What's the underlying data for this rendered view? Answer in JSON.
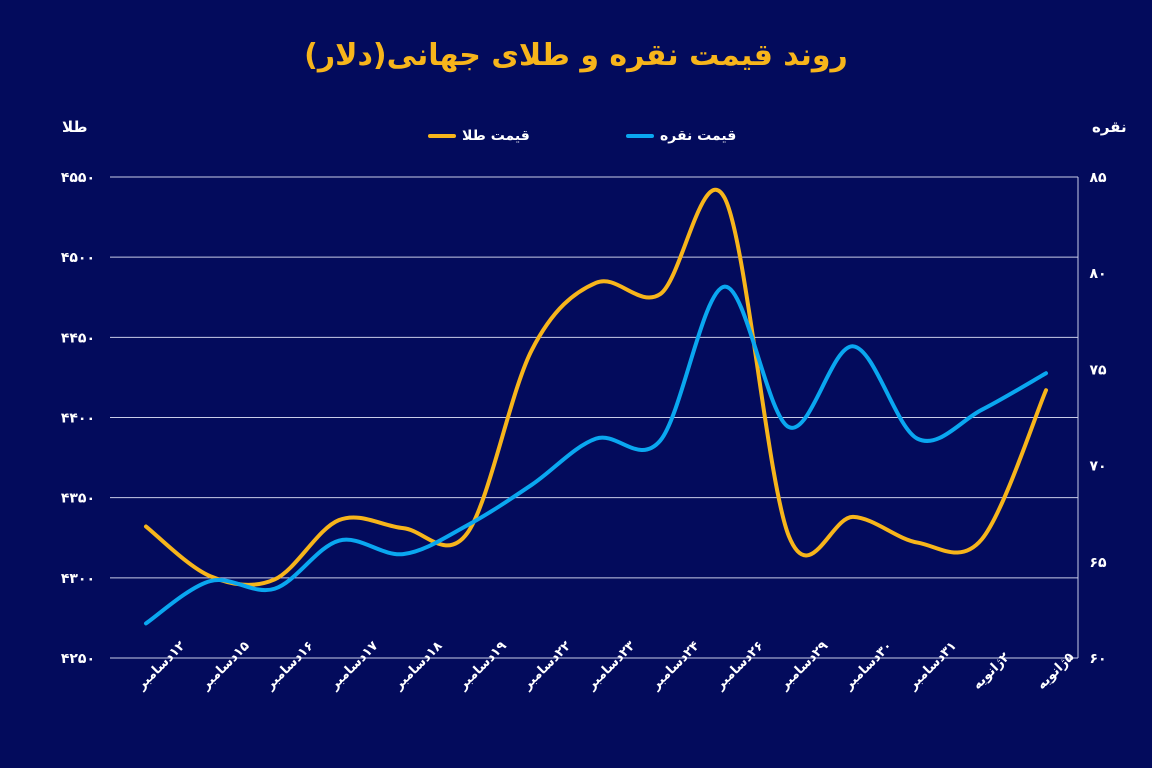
{
  "chart_data": {
    "type": "line",
    "title": "روند قیمت نقره و طلای جهانی(دلار)",
    "y_left_label": "طلا",
    "y_right_label": "نقره",
    "categories": [
      "۱۲دسامبر",
      "۱۵دسامبر",
      "۱۶دسامبر",
      "۱۷دسامبر",
      "۱۸دسامبر",
      "۱۹دسامبر",
      "۲۲دسامبر",
      "۲۳دسامبر",
      "۲۴دسامبر",
      "۲۶دسامبر",
      "۲۹دسامبر",
      "۳۰دسامبر",
      "۳۱دسامبر",
      "۲ژانویه",
      "۵ژانویه"
    ],
    "y_left": {
      "range": [
        4250,
        4550
      ],
      "ticks": [
        "۴۲۵۰",
        "۴۳۰۰",
        "۴۳۵۰",
        "۴۴۰۰",
        "۴۴۵۰",
        "۴۵۰۰",
        "۴۵۵۰"
      ]
    },
    "y_right": {
      "range": [
        60,
        85
      ],
      "ticks": [
        "۶۰",
        "۶۵",
        "۷۰",
        "۷۵",
        "۸۰",
        "۸۵"
      ]
    },
    "grid": true,
    "legend_placement": "top-center",
    "series": [
      {
        "name": "قیمت طلا",
        "axis": "left",
        "color": "#f7b51b",
        "values": [
          4332,
          4301,
          4299,
          4336,
          4331,
          4328,
          4442,
          4484,
          4477,
          4537,
          4326,
          4338,
          4322,
          4324,
          4417
        ]
      },
      {
        "name": "قیمت نقره",
        "axis": "right",
        "color": "#0aa7f0",
        "values": [
          61.8,
          64.0,
          63.6,
          66.1,
          65.4,
          66.9,
          69.0,
          71.4,
          71.3,
          79.3,
          72.0,
          76.2,
          71.4,
          72.9,
          74.8
        ]
      }
    ]
  }
}
